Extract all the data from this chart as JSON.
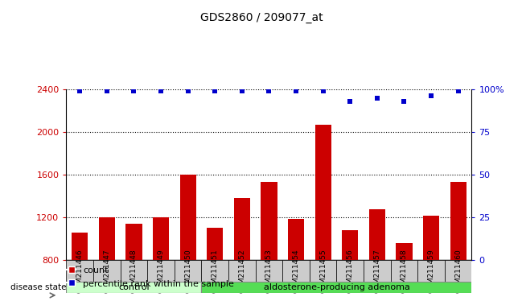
{
  "title": "GDS2860 / 209077_at",
  "samples": [
    "GSM211446",
    "GSM211447",
    "GSM211448",
    "GSM211449",
    "GSM211450",
    "GSM211451",
    "GSM211452",
    "GSM211453",
    "GSM211454",
    "GSM211455",
    "GSM211456",
    "GSM211457",
    "GSM211458",
    "GSM211459",
    "GSM211460"
  ],
  "counts": [
    1060,
    1200,
    1140,
    1205,
    1600,
    1100,
    1380,
    1530,
    1185,
    2070,
    1080,
    1280,
    960,
    1220,
    1530
  ],
  "percentile": [
    99,
    99,
    99,
    99,
    99,
    99,
    99,
    99,
    99,
    99,
    93,
    95,
    93,
    96,
    99
  ],
  "groups": [
    "control",
    "control",
    "control",
    "control",
    "control",
    "aldosterone-producing adenoma",
    "aldosterone-producing adenoma",
    "aldosterone-producing adenoma",
    "aldosterone-producing adenoma",
    "aldosterone-producing adenoma",
    "aldosterone-producing adenoma",
    "aldosterone-producing adenoma",
    "aldosterone-producing adenoma",
    "aldosterone-producing adenoma",
    "aldosterone-producing adenoma"
  ],
  "n_control": 5,
  "ylim_left": [
    800,
    2400
  ],
  "ylim_right": [
    0,
    100
  ],
  "yticks_left": [
    800,
    1200,
    1600,
    2000,
    2400
  ],
  "yticks_right": [
    0,
    25,
    50,
    75,
    100
  ],
  "bar_color": "#CC0000",
  "dot_color": "#0000CC",
  "control_color": "#CCFFCC",
  "adenoma_color": "#55DD55",
  "bg_color": "#CCCCCC",
  "title_fontsize": 10,
  "legend_count_label": "count",
  "legend_pct_label": "percentile rank within the sample",
  "disease_state_label": "disease state",
  "control_label": "control",
  "adenoma_label": "aldosterone-producing adenoma"
}
